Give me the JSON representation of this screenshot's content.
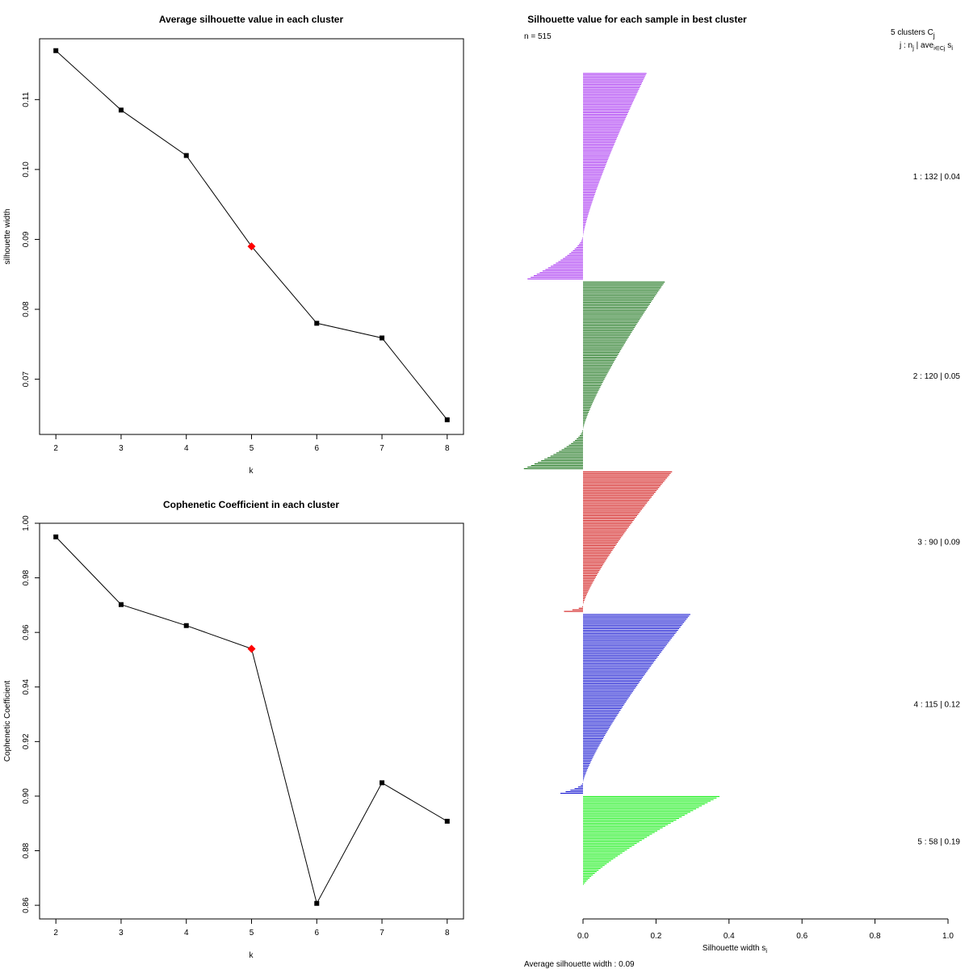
{
  "chart_data": [
    {
      "type": "line",
      "title": "Average silhouette value in each cluster",
      "xlabel": "k",
      "ylabel": "silhouette width",
      "xlim": [
        1.75,
        8.25
      ],
      "ylim": [
        0.0621,
        0.1187
      ],
      "x_ticks": [
        "2",
        "3",
        "4",
        "5",
        "6",
        "7",
        "8"
      ],
      "y_ticks": [
        "0.07",
        "0.08",
        "0.09",
        "0.10",
        "0.11"
      ],
      "x": [
        2,
        3,
        4,
        5,
        6,
        7,
        8
      ],
      "values": [
        0.117,
        0.1085,
        0.102,
        0.089,
        0.078,
        0.0759,
        0.0642
      ],
      "highlight_k": 5,
      "highlight_color": "#ff0000"
    },
    {
      "type": "line",
      "title": "Cophenetic Coefficient in each cluster",
      "xlabel": "k",
      "ylabel": "Cophenetic Coefficient",
      "xlim": [
        1.75,
        8.25
      ],
      "ylim": [
        0.855,
        1.0
      ],
      "x_ticks": [
        "2",
        "3",
        "4",
        "5",
        "6",
        "7",
        "8"
      ],
      "y_ticks": [
        "0.86",
        "0.88",
        "0.90",
        "0.92",
        "0.94",
        "0.96",
        "0.98",
        "1.00"
      ],
      "x": [
        2,
        3,
        4,
        5,
        6,
        7,
        8
      ],
      "values": [
        0.995,
        0.9702,
        0.9625,
        0.954,
        0.8607,
        0.9049,
        0.8908
      ],
      "highlight_k": 5,
      "highlight_color": "#ff0000"
    },
    {
      "type": "bar",
      "title": "Silhouette value for each sample in best cluster",
      "n_label": "n = 515",
      "xlabel": "Silhouette width s",
      "xlabel_sub": "i",
      "xlim": [
        0,
        1.0
      ],
      "x_ticks": [
        "0.0",
        "0.2",
        "0.4",
        "0.6",
        "0.8",
        "1.0"
      ],
      "header_line1": "5  clusters  C",
      "header_line1_sub": "j",
      "header_line2": "j :  n",
      "header_line2_mid": " | ave",
      "header_line2_end": "  s",
      "header_sub2": "j",
      "header_sub3": "i∈Cj",
      "header_sub4": "i",
      "average_text": "Average silhouette width :  0.09",
      "clusters": [
        {
          "label": "1 :   132  |  0.04",
          "n": 132,
          "avg": 0.04,
          "color": "#a020f0",
          "max": 0.17,
          "min": -0.15,
          "n_neg": 27
        },
        {
          "label": "2 :   120  |  0.05",
          "n": 120,
          "avg": 0.05,
          "color": "#006400",
          "max": 0.22,
          "min": -0.16,
          "n_neg": 25
        },
        {
          "label": "3 :   90  |  0.09",
          "n": 90,
          "avg": 0.09,
          "color": "#cd0000",
          "max": 0.24,
          "min": -0.05,
          "n_neg": 4
        },
        {
          "label": "4 :   115  |  0.12",
          "n": 115,
          "avg": 0.12,
          "color": "#0000cd",
          "max": 0.29,
          "min": -0.06,
          "n_neg": 7
        },
        {
          "label": "5 :   58  |  0.19",
          "n": 58,
          "avg": 0.19,
          "color": "#00ee00",
          "max": 0.37,
          "min": 0.0,
          "n_neg": 0
        }
      ]
    }
  ]
}
